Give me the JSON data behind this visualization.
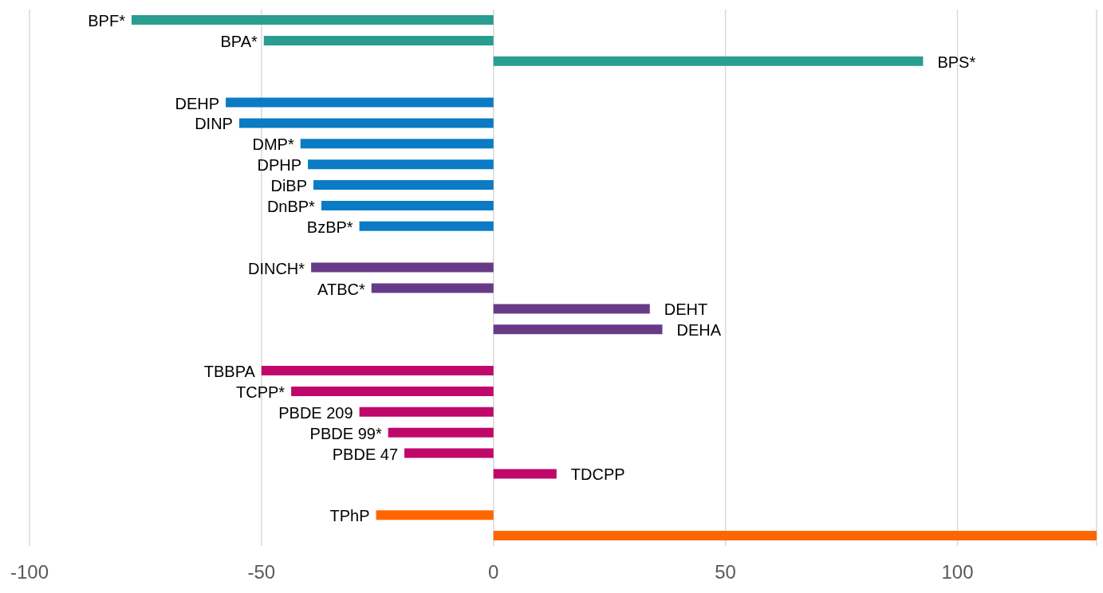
{
  "chart_data": {
    "type": "bar",
    "orientation": "horizontal",
    "categories": [
      "BPF*",
      "BPA*",
      "BPS*",
      null,
      "DEHP",
      "DINP",
      "DMP*",
      "DPHP",
      "DiBP",
      "DnBP*",
      "BzBP*",
      null,
      "DINCH*",
      "ATBC*",
      "DEHT",
      "DEHA",
      null,
      "TBBPA",
      "TCPP*",
      "PBDE 209",
      "PBDE 99*",
      "PBDE 47",
      "TDCPP",
      null,
      "TPhP",
      null
    ],
    "values": [
      -78,
      -49.5,
      92.6,
      null,
      -57.7,
      -54.8,
      -41.6,
      -40,
      -38.8,
      -37.1,
      -28.9,
      null,
      -39.3,
      -26.3,
      33.7,
      36.4,
      null,
      -50,
      -43.6,
      -28.9,
      -22.7,
      -19.2,
      13.6,
      null,
      -25.3,
      130
    ],
    "colors": [
      "#2a9d91",
      "#2a9d91",
      "#2a9d91",
      null,
      "#0a7bc4",
      "#0a7bc4",
      "#0a7bc4",
      "#0a7bc4",
      "#0a7bc4",
      "#0a7bc4",
      "#0a7bc4",
      null,
      "#673a87",
      "#673a87",
      "#673a87",
      "#673a87",
      null,
      "#c0086b",
      "#c0086b",
      "#c0086b",
      "#c0086b",
      "#c0086b",
      "#c0086b",
      null,
      "#ff6600",
      "#ff6600"
    ],
    "xlim": [
      -100,
      130
    ],
    "xticks": [
      -100,
      -50,
      0,
      50,
      100
    ],
    "grid": "x",
    "tick_labels": "x"
  }
}
